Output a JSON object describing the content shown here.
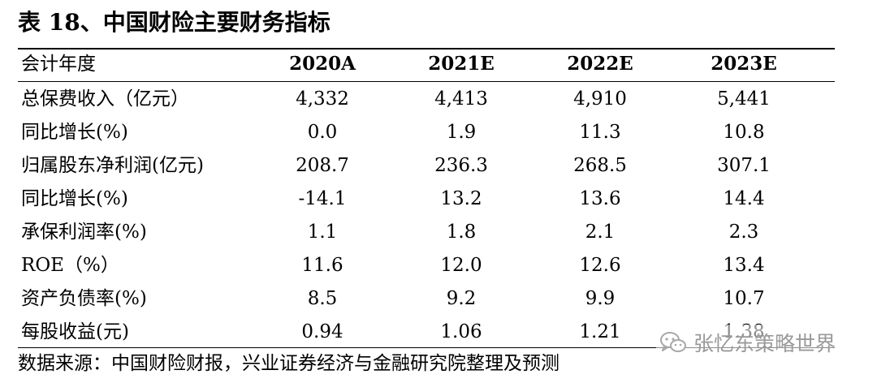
{
  "title": "表 18、中国财险主要财务指标",
  "table": {
    "header": {
      "label": "会计年度",
      "cols": [
        "2020A",
        "2021E",
        "2022E",
        "2023E"
      ]
    },
    "rows": [
      {
        "label": "总保费收入（亿元）",
        "values": [
          "4,332",
          "4,413",
          "4,910",
          "5,441"
        ]
      },
      {
        "label": "同比增长(%)",
        "values": [
          "0.0",
          "1.9",
          "11.3",
          "10.8"
        ]
      },
      {
        "label": "归属股东净利润(亿元)",
        "values": [
          "208.7",
          "236.3",
          "268.5",
          "307.1"
        ]
      },
      {
        "label": "同比增长(%)",
        "values": [
          "-14.1",
          "13.2",
          "13.6",
          "14.4"
        ]
      },
      {
        "label": "承保利润率(%)",
        "values": [
          "1.1",
          "1.8",
          "2.1",
          "2.3"
        ]
      },
      {
        "label": "ROE（%）",
        "values": [
          "11.6",
          "12.0",
          "12.6",
          "13.4"
        ]
      },
      {
        "label": "资产负债率(%)",
        "values": [
          "8.5",
          "9.2",
          "9.9",
          "10.7"
        ]
      },
      {
        "label": "每股收益(元)",
        "values": [
          "0.94",
          "1.06",
          "1.21",
          "1.38"
        ]
      }
    ]
  },
  "source": "数据来源：中国财险财报，兴业证券经济与金融研究院整理及预测",
  "watermark": {
    "text": "张忆东策略世界",
    "icon": "wechat-icon"
  }
}
